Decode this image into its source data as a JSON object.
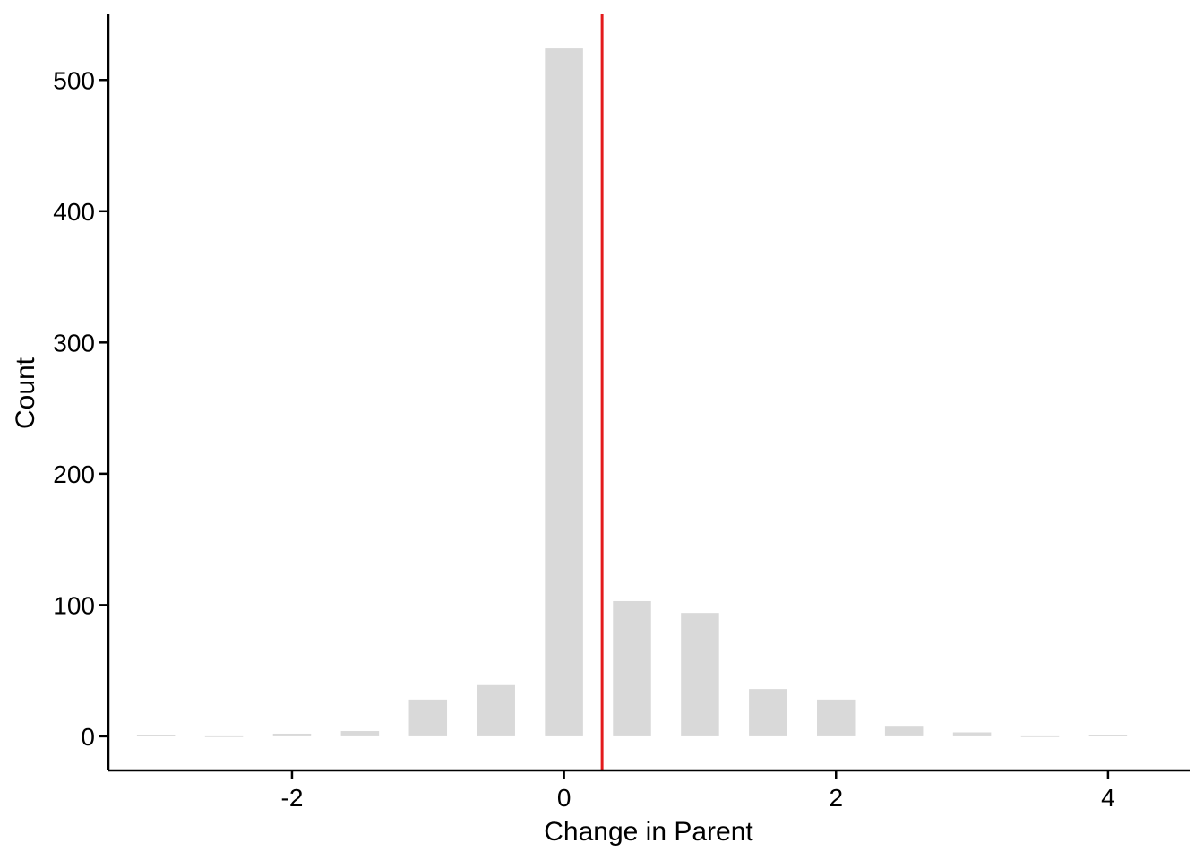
{
  "chart_data": {
    "type": "bar",
    "xlabel": "Change in Parent",
    "ylabel": "Count",
    "x": [
      -3,
      -2.5,
      -2,
      -1.5,
      -1,
      -0.5,
      0,
      0.5,
      1,
      1.5,
      2,
      2.5,
      3,
      3.5,
      4
    ],
    "values": [
      1,
      0,
      2,
      4,
      28,
      39,
      524,
      103,
      94,
      36,
      28,
      8,
      3,
      0,
      1
    ],
    "bar_width": 0.28,
    "xlim": [
      -3.35,
      4.6
    ],
    "ylim": [
      -26,
      550
    ],
    "xticks": [
      -2,
      0,
      2,
      4
    ],
    "xtick_labels": [
      "-2",
      "0",
      "2",
      "4"
    ],
    "yticks": [
      0,
      100,
      200,
      300,
      400,
      500
    ],
    "ytick_labels": [
      "0",
      "100",
      "200",
      "300",
      "400",
      "500"
    ],
    "vline": {
      "x": 0.28,
      "color": "#e31a1c"
    },
    "bar_color": "#d9d9d9",
    "grid": false,
    "legend": "none"
  }
}
